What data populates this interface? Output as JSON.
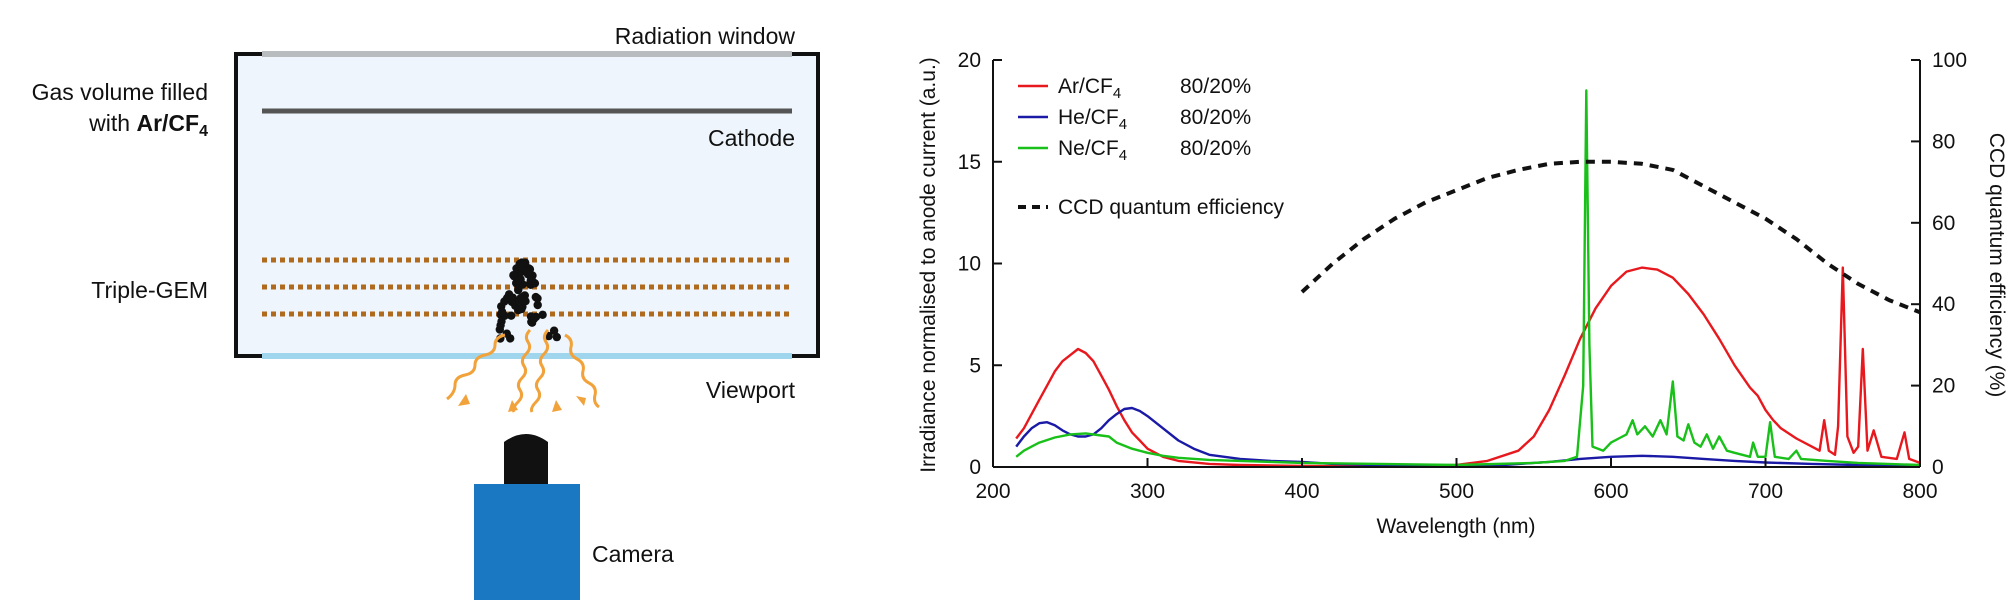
{
  "diagram": {
    "labels": {
      "radiation_window": "Radiation window",
      "gas_line1": "Gas volume filled",
      "gas_line2_prefix": "with ",
      "gas_mixture_main": "Ar/CF",
      "gas_mixture_sub": "4",
      "cathode": "Cathode",
      "triple_gem": "Triple-GEM",
      "viewport": "Viewport",
      "camera": "Camera"
    },
    "colors": {
      "chamber_fill": "#eef5fc",
      "frame": "#111111",
      "window": "#b9bcbf",
      "cathode": "#555555",
      "gem": "#b06a1e",
      "viewport": "#9fd6ee",
      "photons": "#f2a23a",
      "camera_body": "#1a78c2",
      "lens": "#111111"
    },
    "icons": [
      "electron-avalanche-icon",
      "photon-wave-icon",
      "camera-icon"
    ]
  },
  "chart_data": {
    "type": "line",
    "xlabel": "Wavelength (nm)",
    "ylabel": "Irradiance normalised to anode current (a.u.)",
    "y2label": "CCD quantum efficiency (%)",
    "xlim": [
      200,
      800
    ],
    "ylim": [
      0,
      20
    ],
    "y2lim": [
      0,
      100
    ],
    "xticks": [
      200,
      300,
      400,
      500,
      600,
      700,
      800
    ],
    "yticks": [
      0,
      5,
      10,
      15,
      20
    ],
    "y2ticks": [
      0,
      20,
      40,
      60,
      80,
      100
    ],
    "grid": false,
    "legend_position": "top-left",
    "legend": [
      {
        "main": "Ar/CF",
        "sub": "4",
        "ratio": "80/20%",
        "color": "#e8191e",
        "style": "solid"
      },
      {
        "main": "He/CF",
        "sub": "4",
        "ratio": "80/20%",
        "color": "#1a1aa6",
        "style": "solid"
      },
      {
        "main": "Ne/CF",
        "sub": "4",
        "ratio": "80/20%",
        "color": "#19c019",
        "style": "solid"
      },
      {
        "main": "CCD quantum efficiency",
        "sub": "",
        "ratio": "",
        "color": "#111111",
        "style": "dashed"
      }
    ],
    "series": [
      {
        "axis": "left",
        "color": "#e8191e",
        "points": [
          [
            215,
            1.4
          ],
          [
            220,
            1.9
          ],
          [
            225,
            2.6
          ],
          [
            230,
            3.3
          ],
          [
            235,
            4.0
          ],
          [
            240,
            4.7
          ],
          [
            245,
            5.2
          ],
          [
            250,
            5.5
          ],
          [
            255,
            5.8
          ],
          [
            260,
            5.6
          ],
          [
            265,
            5.2
          ],
          [
            270,
            4.5
          ],
          [
            275,
            3.8
          ],
          [
            280,
            3.0
          ],
          [
            285,
            2.3
          ],
          [
            290,
            1.7
          ],
          [
            295,
            1.3
          ],
          [
            300,
            0.9
          ],
          [
            310,
            0.5
          ],
          [
            320,
            0.3
          ],
          [
            340,
            0.15
          ],
          [
            360,
            0.1
          ],
          [
            400,
            0.05
          ],
          [
            450,
            0.03
          ],
          [
            500,
            0.1
          ],
          [
            520,
            0.3
          ],
          [
            540,
            0.8
          ],
          [
            550,
            1.5
          ],
          [
            560,
            2.8
          ],
          [
            570,
            4.5
          ],
          [
            580,
            6.3
          ],
          [
            590,
            7.8
          ],
          [
            600,
            8.9
          ],
          [
            610,
            9.6
          ],
          [
            620,
            9.8
          ],
          [
            630,
            9.7
          ],
          [
            640,
            9.3
          ],
          [
            650,
            8.5
          ],
          [
            660,
            7.5
          ],
          [
            670,
            6.3
          ],
          [
            680,
            5.0
          ],
          [
            690,
            3.9
          ],
          [
            695,
            3.5
          ],
          [
            700,
            2.8
          ],
          [
            705,
            2.3
          ],
          [
            710,
            1.9
          ],
          [
            720,
            1.4
          ],
          [
            730,
            1.0
          ],
          [
            735,
            0.8
          ],
          [
            738,
            2.3
          ],
          [
            741,
            0.8
          ],
          [
            745,
            0.6
          ],
          [
            747,
            2.0
          ],
          [
            750,
            9.8
          ],
          [
            753,
            1.5
          ],
          [
            757,
            0.7
          ],
          [
            760,
            1.0
          ],
          [
            763,
            5.8
          ],
          [
            766,
            0.8
          ],
          [
            770,
            1.8
          ],
          [
            775,
            0.5
          ],
          [
            785,
            0.4
          ],
          [
            790,
            1.7
          ],
          [
            793,
            0.4
          ],
          [
            800,
            0.2
          ]
        ]
      },
      {
        "axis": "left",
        "color": "#1a1aa6",
        "points": [
          [
            215,
            1.0
          ],
          [
            220,
            1.5
          ],
          [
            225,
            1.9
          ],
          [
            230,
            2.15
          ],
          [
            235,
            2.2
          ],
          [
            240,
            2.05
          ],
          [
            245,
            1.8
          ],
          [
            250,
            1.6
          ],
          [
            255,
            1.5
          ],
          [
            260,
            1.5
          ],
          [
            265,
            1.6
          ],
          [
            270,
            1.9
          ],
          [
            275,
            2.3
          ],
          [
            280,
            2.6
          ],
          [
            285,
            2.85
          ],
          [
            290,
            2.9
          ],
          [
            295,
            2.75
          ],
          [
            300,
            2.5
          ],
          [
            310,
            1.9
          ],
          [
            320,
            1.3
          ],
          [
            330,
            0.9
          ],
          [
            340,
            0.6
          ],
          [
            360,
            0.4
          ],
          [
            380,
            0.3
          ],
          [
            400,
            0.25
          ],
          [
            420,
            0.15
          ],
          [
            450,
            0.1
          ],
          [
            480,
            0.05
          ],
          [
            500,
            0.05
          ],
          [
            530,
            0.1
          ],
          [
            560,
            0.25
          ],
          [
            580,
            0.4
          ],
          [
            600,
            0.5
          ],
          [
            620,
            0.55
          ],
          [
            640,
            0.5
          ],
          [
            660,
            0.4
          ],
          [
            680,
            0.3
          ],
          [
            700,
            0.22
          ],
          [
            730,
            0.15
          ],
          [
            760,
            0.1
          ],
          [
            800,
            0.05
          ]
        ]
      },
      {
        "axis": "left",
        "color": "#19c019",
        "points": [
          [
            215,
            0.5
          ],
          [
            220,
            0.8
          ],
          [
            225,
            1.0
          ],
          [
            230,
            1.2
          ],
          [
            240,
            1.45
          ],
          [
            250,
            1.6
          ],
          [
            260,
            1.65
          ],
          [
            270,
            1.55
          ],
          [
            275,
            1.5
          ],
          [
            280,
            1.2
          ],
          [
            290,
            0.9
          ],
          [
            300,
            0.7
          ],
          [
            310,
            0.55
          ],
          [
            320,
            0.45
          ],
          [
            340,
            0.35
          ],
          [
            360,
            0.3
          ],
          [
            380,
            0.25
          ],
          [
            400,
            0.2
          ],
          [
            450,
            0.15
          ],
          [
            500,
            0.1
          ],
          [
            550,
            0.2
          ],
          [
            570,
            0.3
          ],
          [
            578,
            0.5
          ],
          [
            582,
            4.0
          ],
          [
            584,
            18.5
          ],
          [
            586,
            6.0
          ],
          [
            588,
            1.0
          ],
          [
            595,
            0.8
          ],
          [
            600,
            1.2
          ],
          [
            605,
            1.4
          ],
          [
            610,
            1.6
          ],
          [
            614,
            2.3
          ],
          [
            617,
            1.6
          ],
          [
            622,
            2.0
          ],
          [
            627,
            1.5
          ],
          [
            632,
            2.3
          ],
          [
            636,
            1.6
          ],
          [
            640,
            4.2
          ],
          [
            643,
            1.5
          ],
          [
            647,
            1.3
          ],
          [
            650,
            2.1
          ],
          [
            654,
            1.2
          ],
          [
            658,
            1.0
          ],
          [
            662,
            1.6
          ],
          [
            666,
            0.9
          ],
          [
            670,
            1.5
          ],
          [
            675,
            0.8
          ],
          [
            680,
            0.7
          ],
          [
            690,
            0.5
          ],
          [
            692,
            1.2
          ],
          [
            695,
            0.5
          ],
          [
            700,
            0.5
          ],
          [
            703,
            2.2
          ],
          [
            706,
            0.5
          ],
          [
            715,
            0.4
          ],
          [
            720,
            0.8
          ],
          [
            723,
            0.4
          ],
          [
            740,
            0.3
          ],
          [
            760,
            0.2
          ],
          [
            800,
            0.1
          ]
        ]
      },
      {
        "axis": "right",
        "color": "#111111",
        "dashed": true,
        "points": [
          [
            400,
            43
          ],
          [
            420,
            50
          ],
          [
            440,
            56
          ],
          [
            460,
            61
          ],
          [
            480,
            65
          ],
          [
            500,
            68
          ],
          [
            520,
            71
          ],
          [
            540,
            73
          ],
          [
            560,
            74.5
          ],
          [
            580,
            75
          ],
          [
            600,
            75
          ],
          [
            620,
            74.5
          ],
          [
            640,
            73
          ],
          [
            660,
            69
          ],
          [
            680,
            65
          ],
          [
            700,
            61
          ],
          [
            720,
            56
          ],
          [
            740,
            50
          ],
          [
            760,
            45
          ],
          [
            780,
            41
          ],
          [
            800,
            38
          ]
        ]
      }
    ]
  }
}
